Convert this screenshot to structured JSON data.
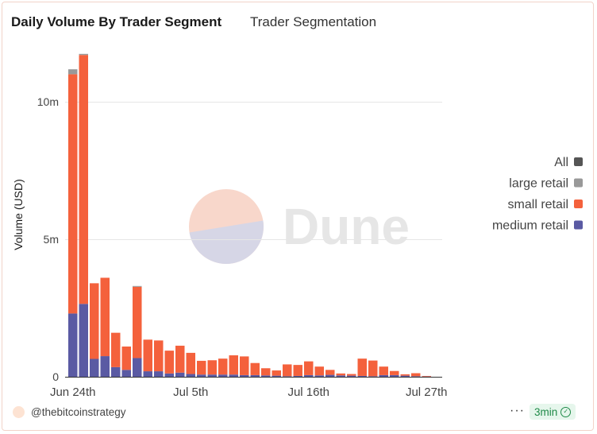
{
  "header": {
    "title": "Daily Volume By Trader Segment",
    "subtitle": "Trader Segmentation"
  },
  "footer": {
    "user": "@thebitcoinstrategy",
    "more": "···",
    "badge": "3min"
  },
  "watermark": "Dune",
  "colors": {
    "medium_retail": "#5a5aa3",
    "small_retail": "#f4613c",
    "large_retail": "#999999",
    "all": "#555555"
  },
  "chart_data": {
    "type": "bar",
    "stacked": true,
    "ylabel": "Volume (USD)",
    "yticks": [
      {
        "v": 0,
        "label": "0"
      },
      {
        "v": 5000000,
        "label": "5m"
      },
      {
        "v": 10000000,
        "label": "10m"
      }
    ],
    "xticks": [
      {
        "i": 0,
        "label": "Jun 24th"
      },
      {
        "i": 11,
        "label": "Jul 5th"
      },
      {
        "i": 22,
        "label": "Jul 16th"
      },
      {
        "i": 33,
        "label": "Jul 27th"
      }
    ],
    "ylim": [
      0,
      12000000
    ],
    "grid": true,
    "legend_position": "right",
    "legend": [
      {
        "name": "All",
        "color": "#555555"
      },
      {
        "name": "large retail",
        "color": "#999999"
      },
      {
        "name": "small retail",
        "color": "#f4613c"
      },
      {
        "name": "medium retail",
        "color": "#5a5aa3"
      }
    ],
    "categories": [
      "Jun 24",
      "Jun 25",
      "Jun 26",
      "Jun 27",
      "Jun 28",
      "Jun 29",
      "Jun 30",
      "Jul 1",
      "Jul 2",
      "Jul 3",
      "Jul 4",
      "Jul 5",
      "Jul 6",
      "Jul 7",
      "Jul 8",
      "Jul 9",
      "Jul 10",
      "Jul 11",
      "Jul 12",
      "Jul 13",
      "Jul 14",
      "Jul 15",
      "Jul 16",
      "Jul 17",
      "Jul 18",
      "Jul 19",
      "Jul 20",
      "Jul 21",
      "Jul 22",
      "Jul 23",
      "Jul 24",
      "Jul 25",
      "Jul 26",
      "Jul 27"
    ],
    "series": [
      {
        "name": "medium retail",
        "values": [
          2300000,
          2650000,
          650000,
          750000,
          350000,
          250000,
          680000,
          200000,
          200000,
          120000,
          150000,
          100000,
          80000,
          80000,
          80000,
          80000,
          60000,
          60000,
          50000,
          40000,
          20000,
          30000,
          60000,
          50000,
          70000,
          50000,
          40000,
          30000,
          20000,
          60000,
          60000,
          40000,
          20000,
          10000
        ]
      },
      {
        "name": "small retail",
        "values": [
          8700000,
          9050000,
          2750000,
          2850000,
          1250000,
          850000,
          2590000,
          1150000,
          1120000,
          830000,
          980000,
          770000,
          500000,
          520000,
          580000,
          700000,
          680000,
          440000,
          260000,
          190000,
          430000,
          400000,
          500000,
          320000,
          180000,
          70000,
          60000,
          630000,
          570000,
          310000,
          150000,
          50000,
          110000,
          20000
        ]
      },
      {
        "name": "large retail",
        "values": [
          180000,
          40000,
          0,
          0,
          0,
          0,
          30000,
          0,
          0,
          0,
          0,
          0,
          0,
          0,
          0,
          0,
          0,
          0,
          0,
          0,
          0,
          0,
          0,
          0,
          0,
          0,
          0,
          0,
          0,
          0,
          0,
          0,
          0,
          0
        ]
      }
    ]
  }
}
